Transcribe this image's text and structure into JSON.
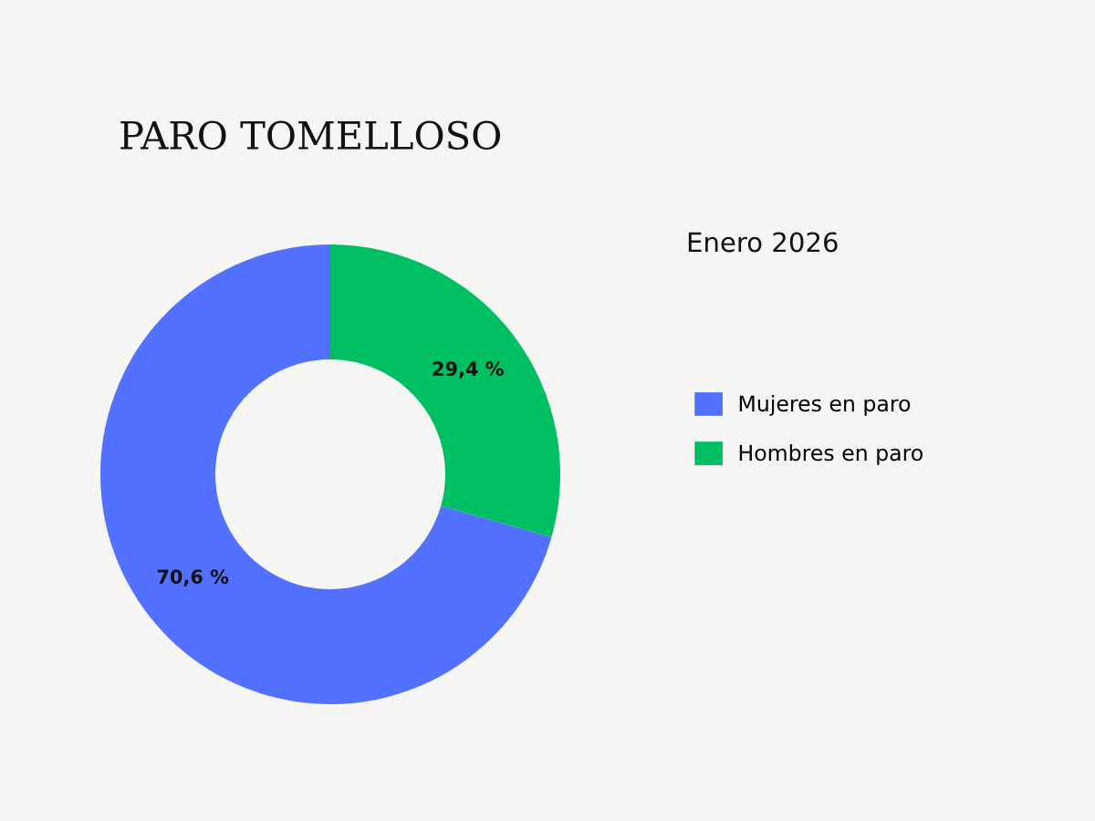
{
  "chart_data": {
    "type": "donut",
    "title": "PARO TOMELLOSO",
    "subtitle": "Enero 2026",
    "categories": [
      "Mujeres en paro",
      "Hombres en paro"
    ],
    "values": [
      70.6,
      29.4
    ],
    "colors": [
      "#5271ff",
      "#00bf63"
    ],
    "value_labels": [
      "70,6 %",
      "29,4 %"
    ],
    "legend": "right"
  }
}
